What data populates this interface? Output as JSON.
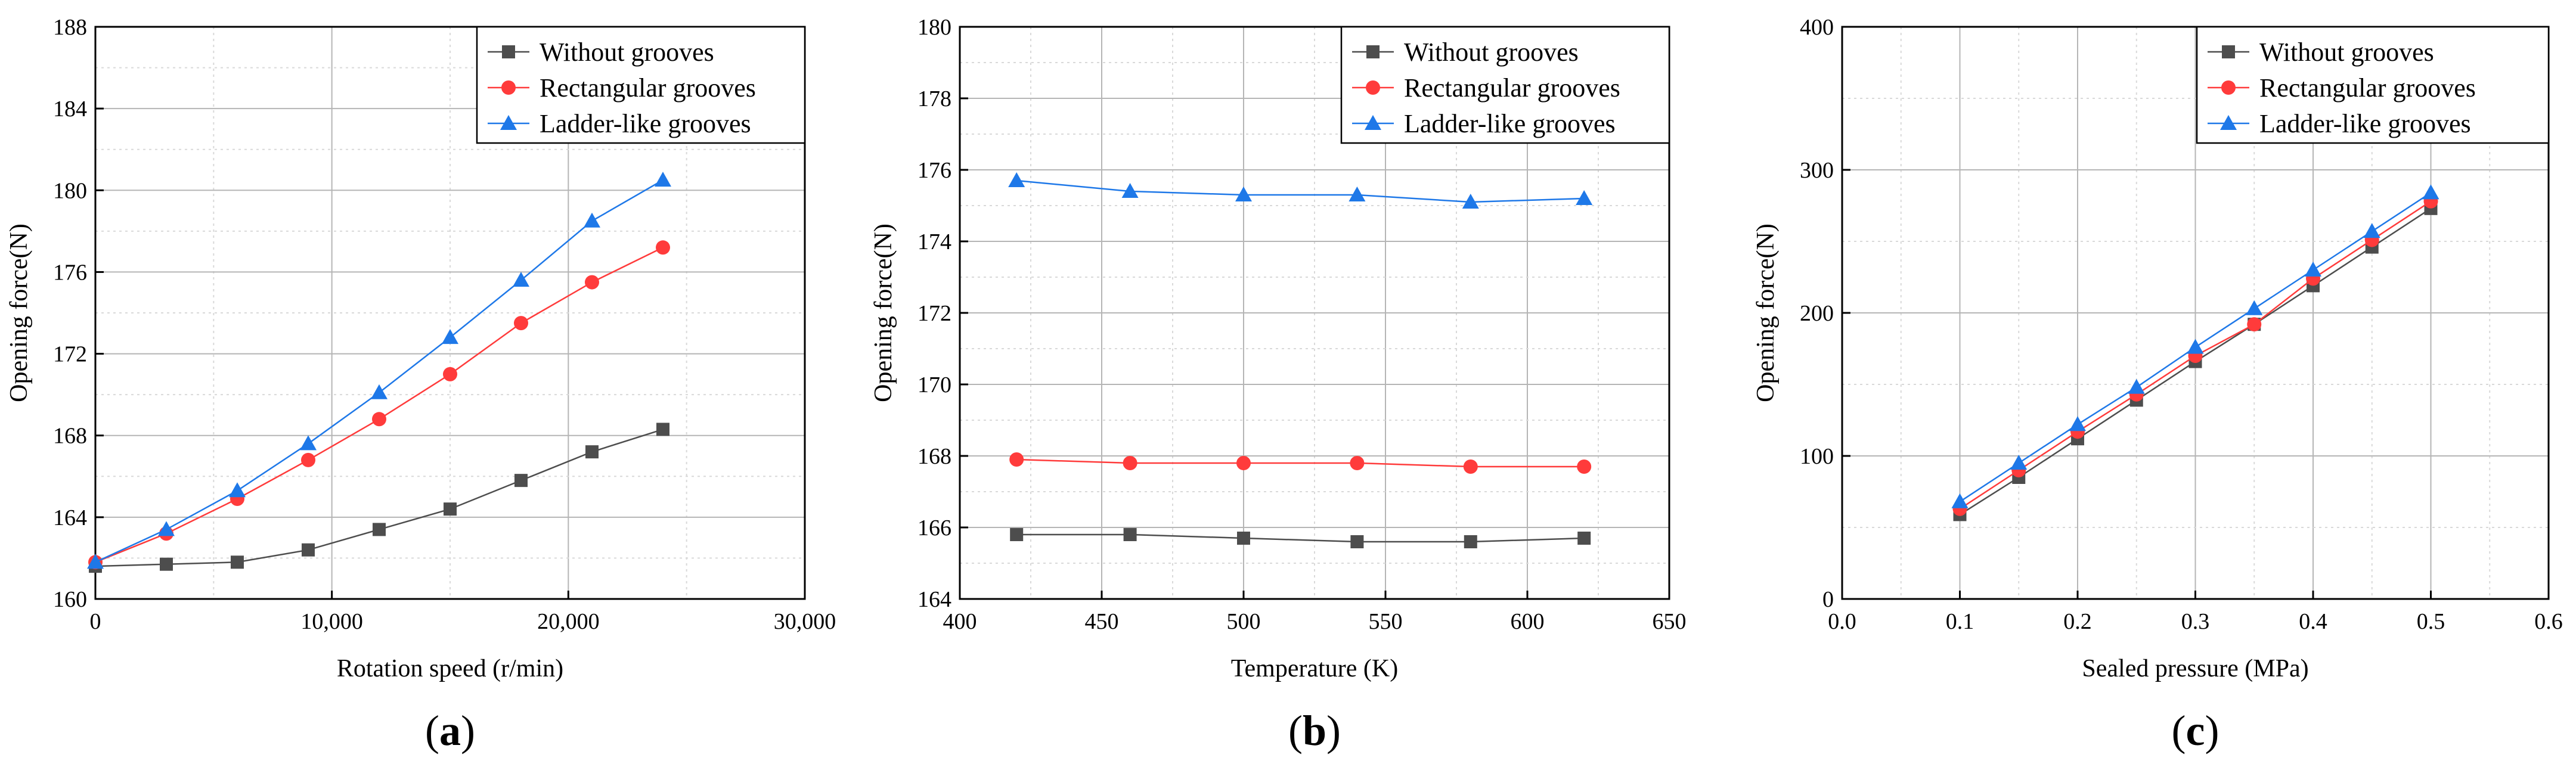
{
  "chart_data": [
    {
      "type": "line",
      "panel": "a",
      "panel_label_open": "(",
      "panel_label_letter": "a",
      "panel_label_close": ")",
      "xlabel": "Rotation speed (r/min)",
      "ylabel": "Opening force(N)",
      "xlim": [
        0,
        30000
      ],
      "ylim": [
        160,
        188
      ],
      "xticks": [
        0,
        10000,
        20000,
        30000
      ],
      "xtick_labels": [
        "0",
        "10,000",
        "20,000",
        "30,000"
      ],
      "yticks": [
        160,
        164,
        168,
        172,
        176,
        180,
        184,
        188
      ],
      "ytick_labels": [
        "160",
        "164",
        "168",
        "172",
        "176",
        "180",
        "184",
        "188"
      ],
      "x": [
        0,
        3000,
        6000,
        9000,
        12000,
        15000,
        18000,
        21000,
        24000
      ],
      "legend_position": "top-right",
      "series": [
        {
          "name": "Without grooves",
          "marker": "square",
          "color": "#4d4d4d",
          "values": [
            161.6,
            161.7,
            161.8,
            162.4,
            163.4,
            164.4,
            165.8,
            167.2,
            168.3
          ]
        },
        {
          "name": "Rectangular grooves",
          "marker": "circle",
          "color": "#ff3b3b",
          "values": [
            161.8,
            163.2,
            164.9,
            166.8,
            168.8,
            171.0,
            173.5,
            175.5,
            177.2
          ]
        },
        {
          "name": "Ladder-like grooves",
          "marker": "triangle",
          "color": "#1e78e8",
          "values": [
            161.8,
            163.4,
            165.3,
            167.6,
            170.1,
            172.8,
            175.6,
            178.5,
            180.5
          ]
        }
      ]
    },
    {
      "type": "line",
      "panel": "b",
      "panel_label_open": "(",
      "panel_label_letter": "b",
      "panel_label_close": ")",
      "xlabel": "Temperature (K)",
      "ylabel": "Opening force(N)",
      "xlim": [
        400,
        650
      ],
      "ylim": [
        164,
        180
      ],
      "xticks": [
        400,
        450,
        500,
        550,
        600,
        650
      ],
      "xtick_labels": [
        "400",
        "450",
        "500",
        "550",
        "600",
        "650"
      ],
      "yticks": [
        164,
        166,
        168,
        170,
        172,
        174,
        176,
        178,
        180
      ],
      "ytick_labels": [
        "164",
        "166",
        "168",
        "170",
        "172",
        "174",
        "176",
        "178",
        "180"
      ],
      "x": [
        420,
        460,
        500,
        540,
        580,
        620
      ],
      "legend_position": "top-right",
      "series": [
        {
          "name": "Without grooves",
          "marker": "square",
          "color": "#4d4d4d",
          "values": [
            165.8,
            165.8,
            165.7,
            165.6,
            165.6,
            165.7
          ]
        },
        {
          "name": "Rectangular grooves",
          "marker": "circle",
          "color": "#ff3b3b",
          "values": [
            167.9,
            167.8,
            167.8,
            167.8,
            167.7,
            167.7
          ]
        },
        {
          "name": "Ladder-like grooves",
          "marker": "triangle",
          "color": "#1e78e8",
          "values": [
            175.7,
            175.4,
            175.3,
            175.3,
            175.1,
            175.2
          ]
        }
      ]
    },
    {
      "type": "line",
      "panel": "c",
      "panel_label_open": "(",
      "panel_label_letter": "c",
      "panel_label_close": ")",
      "xlabel": "Sealed pressure (MPa)",
      "ylabel": "Opening force(N)",
      "xlim": [
        0.0,
        0.6
      ],
      "ylim": [
        0,
        400
      ],
      "xticks": [
        0.0,
        0.1,
        0.2,
        0.3,
        0.4,
        0.5,
        0.6
      ],
      "xtick_labels": [
        "0.0",
        "0.1",
        "0.2",
        "0.3",
        "0.4",
        "0.5",
        "0.6"
      ],
      "yticks": [
        0,
        100,
        200,
        300,
        400
      ],
      "ytick_labels": [
        "0",
        "100",
        "200",
        "300",
        "400"
      ],
      "x": [
        0.1,
        0.15,
        0.2,
        0.25,
        0.3,
        0.35,
        0.4,
        0.45,
        0.5
      ],
      "legend_position": "top-right",
      "series": [
        {
          "name": "Without grooves",
          "marker": "square",
          "color": "#4d4d4d",
          "values": [
            59,
            85,
            112,
            139,
            166,
            192,
            219,
            246,
            273
          ]
        },
        {
          "name": "Rectangular grooves",
          "marker": "circle",
          "color": "#ff3b3b",
          "values": [
            63,
            90,
            117,
            143,
            170,
            192,
            224,
            251,
            278
          ]
        },
        {
          "name": "Ladder-like grooves",
          "marker": "triangle",
          "color": "#1e78e8",
          "values": [
            68,
            95,
            122,
            148,
            176,
            203,
            230,
            257,
            284
          ]
        }
      ]
    }
  ]
}
